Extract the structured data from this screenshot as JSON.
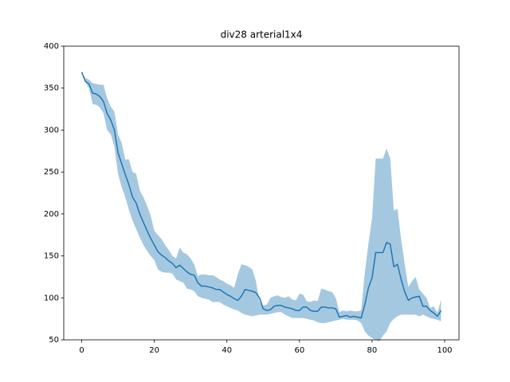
{
  "chart_data": {
    "type": "line",
    "title": "div28 arterial1x4",
    "x": [
      0,
      1,
      2,
      3,
      4,
      5,
      6,
      7,
      8,
      9,
      10,
      11,
      12,
      13,
      14,
      15,
      16,
      17,
      18,
      19,
      20,
      21,
      22,
      23,
      24,
      25,
      26,
      27,
      28,
      29,
      30,
      31,
      32,
      33,
      34,
      35,
      36,
      37,
      38,
      39,
      40,
      41,
      42,
      43,
      44,
      45,
      46,
      47,
      48,
      49,
      50,
      51,
      52,
      53,
      54,
      55,
      56,
      57,
      58,
      59,
      60,
      61,
      62,
      63,
      64,
      65,
      66,
      67,
      68,
      69,
      70,
      71,
      72,
      73,
      74,
      75,
      76,
      77,
      78,
      79,
      80,
      81,
      82,
      83,
      84,
      85,
      86,
      87,
      88,
      89,
      90,
      91,
      92,
      93,
      94,
      95,
      96,
      97,
      98,
      99
    ],
    "series": [
      {
        "color": "#1f77b4",
        "band_color": "#a5c8e1",
        "values": [
          369,
          358,
          355,
          344,
          343,
          340,
          334,
          320,
          312,
          300,
          273,
          260,
          247,
          235,
          220,
          213,
          200,
          190,
          180,
          171,
          163,
          155,
          151,
          148,
          144,
          141,
          136,
          139,
          135,
          131,
          128,
          127,
          118,
          114,
          114,
          113,
          112,
          110,
          110,
          107,
          104,
          102,
          99,
          97,
          102,
          110,
          109,
          108,
          106,
          100,
          87,
          85,
          86,
          90,
          91,
          91,
          89,
          88,
          87,
          85,
          85,
          89,
          89,
          85,
          84,
          84,
          89,
          89,
          88,
          88,
          87,
          77,
          78,
          79,
          77,
          78,
          77,
          76,
          92,
          112,
          124,
          154,
          154,
          154,
          166,
          164,
          137,
          140,
          122,
          107,
          97,
          100,
          101,
          102,
          90,
          90,
          85,
          82,
          78,
          85
        ],
        "lower": [
          369,
          357,
          350,
          331,
          330,
          327,
          320,
          300,
          295,
          280,
          248,
          232,
          220,
          205,
          192,
          182,
          172,
          163,
          156,
          150,
          145,
          134,
          131,
          130,
          130,
          129,
          122,
          120,
          118,
          111,
          110,
          108,
          102,
          100,
          99,
          98,
          95,
          95,
          95,
          92,
          90,
          88,
          86,
          85,
          82,
          80,
          79,
          78,
          79,
          80,
          80,
          80,
          81,
          82,
          83,
          83,
          80,
          78,
          76,
          76,
          76,
          76,
          75,
          74,
          73,
          71,
          70,
          70,
          71,
          72,
          73,
          74,
          75,
          74,
          74,
          74,
          73,
          70,
          60,
          55,
          52,
          50,
          48,
          55,
          60,
          70,
          75,
          78,
          80,
          80,
          80,
          80,
          80,
          78,
          80,
          78,
          76,
          75,
          74,
          72
        ],
        "upper": [
          369,
          362,
          360,
          356,
          355,
          354,
          354,
          338,
          328,
          322,
          295,
          285,
          265,
          265,
          250,
          248,
          228,
          220,
          210,
          198,
          180,
          175,
          170,
          163,
          157,
          150,
          147,
          160,
          154,
          152,
          147,
          140,
          126,
          128,
          128,
          127,
          127,
          125,
          122,
          120,
          117,
          115,
          112,
          128,
          140,
          139,
          137,
          134,
          120,
          95,
          91,
          92,
          100,
          102,
          103,
          101,
          100,
          102,
          98,
          97,
          105,
          104,
          96,
          95,
          97,
          96,
          111,
          110,
          108,
          107,
          100,
          83,
          85,
          84,
          85,
          84,
          84,
          85,
          130,
          165,
          195,
          266,
          266,
          266,
          278,
          266,
          204,
          206,
          170,
          140,
          113,
          120,
          125,
          110,
          105,
          100,
          88,
          90,
          82,
          98
        ]
      }
    ],
    "xlim": [
      -4.95,
      103.95
    ],
    "ylim": [
      50,
      400
    ],
    "xticks": [
      0,
      20,
      40,
      60,
      80,
      100
    ],
    "yticks": [
      50,
      100,
      150,
      200,
      250,
      300,
      350,
      400
    ]
  }
}
